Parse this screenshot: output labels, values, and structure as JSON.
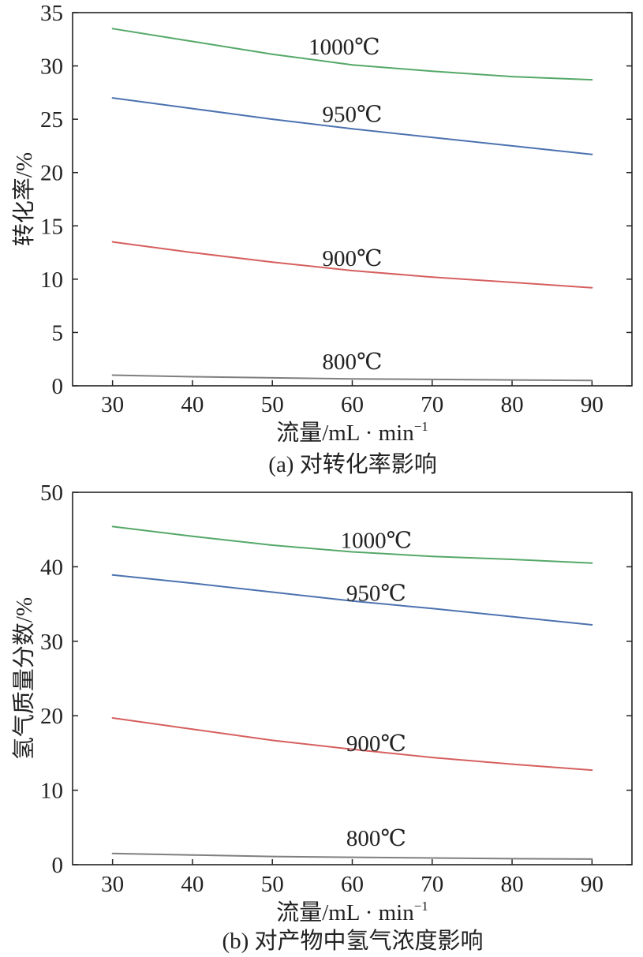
{
  "chart_data": [
    {
      "type": "line",
      "caption": "(a) 对转化率影响",
      "xlabel": "流量/mL · min",
      "xlabel_sup": "−1",
      "ylabel": "转化率/%",
      "xlim": [
        25,
        95
      ],
      "ylim": [
        0,
        35
      ],
      "xticks": [
        30,
        40,
        50,
        60,
        70,
        80,
        90
      ],
      "yticks": [
        0,
        5,
        10,
        15,
        20,
        25,
        30,
        35
      ],
      "x": [
        30,
        40,
        50,
        60,
        70,
        80,
        90
      ],
      "series": [
        {
          "name": "800℃",
          "color": "#7f7f7f",
          "values": [
            1.0,
            0.85,
            0.75,
            0.65,
            0.6,
            0.55,
            0.5
          ],
          "label_at": [
            60,
            2.3
          ]
        },
        {
          "name": "900℃",
          "color": "#d65f5f",
          "values": [
            13.5,
            12.5,
            11.6,
            10.8,
            10.2,
            9.7,
            9.2
          ],
          "label_at": [
            60,
            12.0
          ]
        },
        {
          "name": "950℃",
          "color": "#4c72b0",
          "values": [
            27.0,
            26.0,
            25.0,
            24.1,
            23.3,
            22.5,
            21.7
          ],
          "label_at": [
            60,
            25.5
          ]
        },
        {
          "name": "1000℃",
          "color": "#55a868",
          "values": [
            33.5,
            32.3,
            31.1,
            30.1,
            29.5,
            29.0,
            28.7
          ],
          "label_at": [
            59,
            31.8
          ]
        }
      ]
    },
    {
      "type": "line",
      "caption": "(b) 对产物中氢气浓度影响",
      "xlabel": "流量/mL · min",
      "xlabel_sup": "−1",
      "ylabel": "氢气质量分数/%",
      "xlim": [
        25,
        95
      ],
      "ylim": [
        0,
        50
      ],
      "xticks": [
        30,
        40,
        50,
        60,
        70,
        80,
        90
      ],
      "yticks": [
        0,
        10,
        20,
        30,
        40,
        50
      ],
      "x": [
        30,
        40,
        50,
        60,
        70,
        80,
        90
      ],
      "series": [
        {
          "name": "800℃",
          "color": "#7f7f7f",
          "values": [
            1.5,
            1.3,
            1.1,
            1.0,
            0.9,
            0.8,
            0.75
          ],
          "label_at": [
            63,
            3.6
          ]
        },
        {
          "name": "900℃",
          "color": "#d65f5f",
          "values": [
            19.7,
            18.2,
            16.7,
            15.5,
            14.4,
            13.5,
            12.7
          ],
          "label_at": [
            63,
            16.3
          ]
        },
        {
          "name": "950℃",
          "color": "#4c72b0",
          "values": [
            38.9,
            37.8,
            36.6,
            35.4,
            34.4,
            33.3,
            32.2
          ],
          "label_at": [
            63,
            36.5
          ]
        },
        {
          "name": "1000℃",
          "color": "#55a868",
          "values": [
            45.4,
            44.1,
            42.9,
            42.0,
            41.4,
            41.0,
            40.5
          ],
          "label_at": [
            63,
            43.6
          ]
        }
      ]
    }
  ]
}
